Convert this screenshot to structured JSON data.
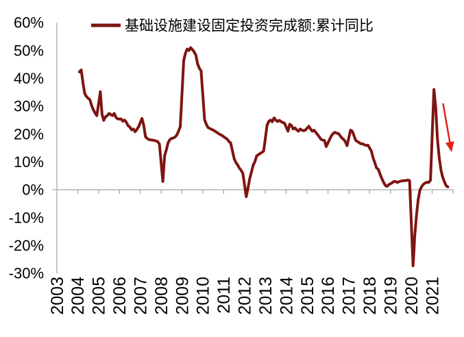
{
  "chart_data": {
    "type": "line",
    "title": "",
    "legend": [
      {
        "label": "基础设施建设固定投资完成额:累计同比",
        "color": "#7E1511",
        "marker": "line"
      }
    ],
    "x_axis": {
      "ticks": [
        "2003",
        "2004",
        "2005",
        "2006",
        "2007",
        "2008",
        "2009",
        "2010",
        "2011",
        "2012",
        "2013",
        "2014",
        "2015",
        "2016",
        "2017",
        "2018",
        "2019",
        "2020",
        "2021"
      ],
      "range": [
        2003,
        2022
      ],
      "label_rotation": -90
    },
    "y_axis": {
      "ticks": [
        "60%",
        "50%",
        "40%",
        "30%",
        "20%",
        "10%",
        "0%",
        "-10%",
        "-20%",
        "-30%"
      ],
      "range": [
        -30,
        60
      ],
      "step": 10,
      "unit": "%"
    },
    "grid": "none",
    "axis_color": "#a6a6a6",
    "series": [
      {
        "name": "基础设施建设固定投资完成额:累计同比",
        "color": "#7E1511",
        "stroke_width": 4,
        "points": [
          [
            2004.083,
            42.3
          ],
          [
            2004.167,
            43.0
          ],
          [
            2004.25,
            38.5
          ],
          [
            2004.333,
            34.5
          ],
          [
            2004.417,
            33.5
          ],
          [
            2004.5,
            32.8
          ],
          [
            2004.583,
            32.3
          ],
          [
            2004.667,
            30.2
          ],
          [
            2004.75,
            28.7
          ],
          [
            2004.833,
            27.5
          ],
          [
            2004.917,
            26.6
          ],
          [
            2005.083,
            35.2
          ],
          [
            2005.167,
            27.0
          ],
          [
            2005.25,
            24.9
          ],
          [
            2005.333,
            26.2
          ],
          [
            2005.417,
            26.6
          ],
          [
            2005.5,
            27.4
          ],
          [
            2005.583,
            27.0
          ],
          [
            2005.667,
            26.6
          ],
          [
            2005.75,
            27.4
          ],
          [
            2005.833,
            26.0
          ],
          [
            2005.917,
            25.4
          ],
          [
            2006.083,
            25.4
          ],
          [
            2006.167,
            24.6
          ],
          [
            2006.25,
            25.0
          ],
          [
            2006.333,
            24.2
          ],
          [
            2006.417,
            23.0
          ],
          [
            2006.5,
            22.5
          ],
          [
            2006.583,
            21.5
          ],
          [
            2006.667,
            21.8
          ],
          [
            2006.75,
            20.8
          ],
          [
            2006.833,
            21.6
          ],
          [
            2006.917,
            22.6
          ],
          [
            2007.083,
            25.6
          ],
          [
            2007.167,
            23.0
          ],
          [
            2007.25,
            19.0
          ],
          [
            2007.333,
            18.4
          ],
          [
            2007.417,
            18.0
          ],
          [
            2007.5,
            17.9
          ],
          [
            2007.583,
            17.8
          ],
          [
            2007.667,
            17.7
          ],
          [
            2007.75,
            17.5
          ],
          [
            2007.833,
            17.3
          ],
          [
            2007.917,
            16.4
          ],
          [
            2008.083,
            3.0
          ],
          [
            2008.167,
            12.2
          ],
          [
            2008.25,
            14.3
          ],
          [
            2008.333,
            16.8
          ],
          [
            2008.417,
            18.0
          ],
          [
            2008.5,
            18.4
          ],
          [
            2008.583,
            18.6
          ],
          [
            2008.667,
            18.9
          ],
          [
            2008.75,
            19.6
          ],
          [
            2008.833,
            21.0
          ],
          [
            2008.917,
            22.6
          ],
          [
            2009.083,
            46.5
          ],
          [
            2009.167,
            49.0
          ],
          [
            2009.25,
            50.5
          ],
          [
            2009.333,
            50.0
          ],
          [
            2009.417,
            51.0
          ],
          [
            2009.5,
            50.3
          ],
          [
            2009.583,
            49.5
          ],
          [
            2009.667,
            48.3
          ],
          [
            2009.75,
            45.2
          ],
          [
            2009.833,
            43.6
          ],
          [
            2009.917,
            42.7
          ],
          [
            2010.083,
            25.1
          ],
          [
            2010.167,
            23.5
          ],
          [
            2010.25,
            22.3
          ],
          [
            2010.333,
            22.0
          ],
          [
            2010.417,
            21.7
          ],
          [
            2010.5,
            21.4
          ],
          [
            2010.583,
            21.0
          ],
          [
            2010.667,
            20.6
          ],
          [
            2010.75,
            20.2
          ],
          [
            2010.833,
            19.8
          ],
          [
            2010.917,
            19.5
          ],
          [
            2011.083,
            18.6
          ],
          [
            2011.167,
            18.2
          ],
          [
            2011.25,
            17.3
          ],
          [
            2011.333,
            16.8
          ],
          [
            2011.417,
            14.0
          ],
          [
            2011.5,
            11.2
          ],
          [
            2011.583,
            9.8
          ],
          [
            2011.667,
            8.9
          ],
          [
            2011.75,
            7.8
          ],
          [
            2011.833,
            7.0
          ],
          [
            2011.917,
            5.9
          ],
          [
            2012.083,
            -2.5
          ],
          [
            2012.167,
            0.7
          ],
          [
            2012.25,
            4.0
          ],
          [
            2012.333,
            6.4
          ],
          [
            2012.417,
            8.9
          ],
          [
            2012.5,
            10.1
          ],
          [
            2012.583,
            12.2
          ],
          [
            2012.667,
            12.6
          ],
          [
            2012.75,
            13.0
          ],
          [
            2012.833,
            13.4
          ],
          [
            2012.917,
            13.9
          ],
          [
            2013.083,
            23.2
          ],
          [
            2013.167,
            24.6
          ],
          [
            2013.25,
            25.0
          ],
          [
            2013.333,
            24.4
          ],
          [
            2013.417,
            25.8
          ],
          [
            2013.5,
            25.0
          ],
          [
            2013.583,
            24.5
          ],
          [
            2013.667,
            24.9
          ],
          [
            2013.75,
            24.5
          ],
          [
            2013.833,
            24.1
          ],
          [
            2013.917,
            23.9
          ],
          [
            2014.083,
            21.0
          ],
          [
            2014.167,
            23.5
          ],
          [
            2014.25,
            23.1
          ],
          [
            2014.333,
            21.8
          ],
          [
            2014.417,
            22.2
          ],
          [
            2014.5,
            21.5
          ],
          [
            2014.583,
            21.0
          ],
          [
            2014.667,
            21.8
          ],
          [
            2014.75,
            21.4
          ],
          [
            2014.833,
            21.2
          ],
          [
            2014.917,
            21.4
          ],
          [
            2015.083,
            22.8
          ],
          [
            2015.167,
            21.8
          ],
          [
            2015.25,
            21.0
          ],
          [
            2015.333,
            21.4
          ],
          [
            2015.417,
            20.6
          ],
          [
            2015.5,
            19.8
          ],
          [
            2015.583,
            19.0
          ],
          [
            2015.667,
            18.1
          ],
          [
            2015.75,
            17.8
          ],
          [
            2015.833,
            17.7
          ],
          [
            2015.917,
            15.5
          ],
          [
            2016.083,
            18.1
          ],
          [
            2016.167,
            19.4
          ],
          [
            2016.25,
            20.2
          ],
          [
            2016.333,
            20.6
          ],
          [
            2016.417,
            20.3
          ],
          [
            2016.5,
            20.2
          ],
          [
            2016.583,
            19.4
          ],
          [
            2016.667,
            18.6
          ],
          [
            2016.75,
            18.1
          ],
          [
            2016.833,
            17.3
          ],
          [
            2016.917,
            15.8
          ],
          [
            2017.083,
            21.4
          ],
          [
            2017.167,
            21.0
          ],
          [
            2017.25,
            19.4
          ],
          [
            2017.333,
            17.7
          ],
          [
            2017.417,
            17.3
          ],
          [
            2017.5,
            16.9
          ],
          [
            2017.583,
            16.5
          ],
          [
            2017.667,
            16.5
          ],
          [
            2017.75,
            16.1
          ],
          [
            2017.833,
            15.9
          ],
          [
            2017.917,
            16.0
          ],
          [
            2018.083,
            13.9
          ],
          [
            2018.167,
            11.4
          ],
          [
            2018.25,
            9.7
          ],
          [
            2018.333,
            7.8
          ],
          [
            2018.417,
            7.3
          ],
          [
            2018.5,
            5.6
          ],
          [
            2018.583,
            4.0
          ],
          [
            2018.667,
            2.7
          ],
          [
            2018.75,
            1.6
          ],
          [
            2018.833,
            1.2
          ],
          [
            2018.917,
            1.8
          ],
          [
            2019.083,
            2.5
          ],
          [
            2019.167,
            3.0
          ],
          [
            2019.25,
            2.9
          ],
          [
            2019.333,
            2.6
          ],
          [
            2019.417,
            2.9
          ],
          [
            2019.5,
            3.1
          ],
          [
            2019.583,
            3.2
          ],
          [
            2019.667,
            3.3
          ],
          [
            2019.75,
            3.3
          ],
          [
            2019.833,
            3.5
          ],
          [
            2019.917,
            3.3
          ],
          [
            2020.083,
            -27.3
          ],
          [
            2020.167,
            -16.4
          ],
          [
            2020.25,
            -8.8
          ],
          [
            2020.333,
            -3.3
          ],
          [
            2020.417,
            -0.1
          ],
          [
            2020.5,
            1.2
          ],
          [
            2020.583,
            2.0
          ],
          [
            2020.667,
            2.4
          ],
          [
            2020.75,
            2.7
          ],
          [
            2020.833,
            2.6
          ],
          [
            2020.917,
            3.4
          ],
          [
            2021.083,
            36.0
          ],
          [
            2021.167,
            29.7
          ],
          [
            2021.25,
            18.4
          ],
          [
            2021.333,
            11.8
          ],
          [
            2021.417,
            7.2
          ],
          [
            2021.5,
            4.6
          ],
          [
            2021.583,
            2.9
          ],
          [
            2021.667,
            1.5
          ],
          [
            2021.75,
            1.0
          ]
        ]
      }
    ],
    "annotations": [
      {
        "type": "arrow",
        "color": "#E02318",
        "from": [
          2021.52,
          31.0
        ],
        "to": [
          2021.93,
          13.5
        ]
      }
    ]
  }
}
